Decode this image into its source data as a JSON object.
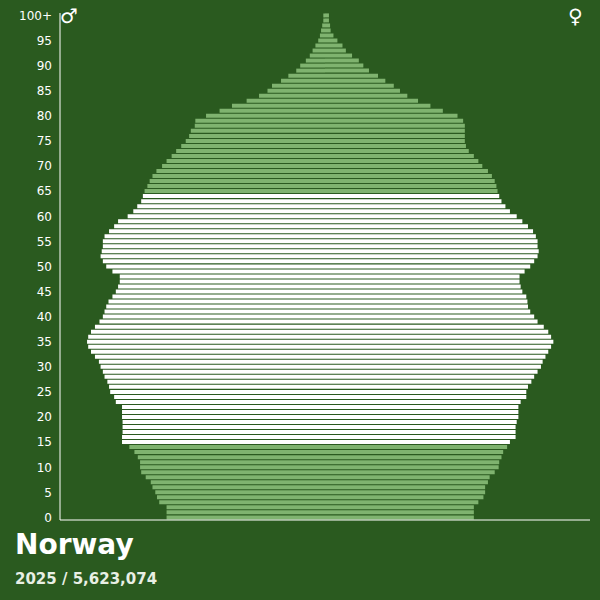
{
  "chart_data": {
    "type": "bar",
    "orientation": "horizontal",
    "title": "Norway",
    "subtitle": "2025 / 5,623,074",
    "tick_labels": "y",
    "xlim": [
      0,
      47000
    ],
    "categories": [
      "0",
      null,
      null,
      null,
      null,
      "5",
      null,
      null,
      null,
      null,
      "10",
      null,
      null,
      null,
      null,
      "15",
      null,
      null,
      null,
      null,
      "20",
      null,
      null,
      null,
      null,
      "25",
      null,
      null,
      null,
      null,
      "30",
      null,
      null,
      null,
      null,
      "35",
      null,
      null,
      null,
      null,
      "40",
      null,
      null,
      null,
      null,
      "45",
      null,
      null,
      null,
      null,
      "50",
      null,
      null,
      null,
      null,
      "55",
      null,
      null,
      null,
      null,
      "60",
      null,
      null,
      null,
      null,
      "65",
      null,
      null,
      null,
      null,
      "70",
      null,
      null,
      null,
      null,
      "75",
      null,
      null,
      null,
      null,
      "80",
      null,
      null,
      null,
      null,
      "85",
      null,
      null,
      null,
      null,
      "90",
      null,
      null,
      null,
      null,
      "95",
      null,
      null,
      null,
      null,
      "100+"
    ],
    "series": [
      {
        "name": "♂",
        "color": "#7fb36f",
        "values": [
          28100,
          28100,
          28100,
          29400,
          29800,
          30100,
          30600,
          30900,
          31800,
          32600,
          32800,
          32800,
          33200,
          33800,
          34700,
          36000,
          36000,
          35900,
          35900,
          35900,
          36000,
          36000,
          36000,
          37100,
          37400,
          38100,
          38300,
          38600,
          39100,
          39400,
          39800,
          40100,
          40800,
          41500,
          42000,
          42200,
          42000,
          41500,
          40800,
          40000,
          39400,
          39100,
          38800,
          38400,
          37700,
          37100,
          36700,
          36400,
          36400,
          37700,
          38800,
          39400,
          39800,
          39600,
          39400,
          39400,
          39100,
          38300,
          37400,
          36700,
          35000,
          34000,
          33300,
          32600,
          32300,
          32000,
          31500,
          31100,
          30600,
          29900,
          28900,
          28100,
          27200,
          26400,
          25500,
          24700,
          24100,
          23800,
          23100,
          23000,
          21100,
          18700,
          16500,
          13900,
          11700,
          10200,
          9400,
          7800,
          6500,
          5100,
          4400,
          3400,
          2700,
          2200,
          1700,
          1200,
          900,
          700,
          500,
          300,
          300
        ],
        "colors": [
          "#7fb36f",
          "#7fb36f",
          "#7fb36f",
          "#7fb36f",
          "#7fb36f",
          "#7fb36f",
          "#7fb36f",
          "#7fb36f",
          "#7fb36f",
          "#7fb36f",
          "#7fb36f",
          "#7fb36f",
          "#7fb36f",
          "#7fb36f",
          "#7fb36f",
          "#ffffff",
          "#ffffff",
          "#ffffff",
          "#ffffff",
          "#ffffff",
          "#ffffff",
          "#ffffff",
          "#ffffff",
          "#ffffff",
          "#ffffff",
          "#ffffff",
          "#ffffff",
          "#ffffff",
          "#ffffff",
          "#ffffff",
          "#ffffff",
          "#ffffff",
          "#ffffff",
          "#ffffff",
          "#ffffff",
          "#ffffff",
          "#ffffff",
          "#ffffff",
          "#ffffff",
          "#ffffff",
          "#ffffff",
          "#ffffff",
          "#ffffff",
          "#ffffff",
          "#ffffff",
          "#ffffff",
          "#ffffff",
          "#ffffff",
          "#ffffff",
          "#ffffff",
          "#ffffff",
          "#ffffff",
          "#ffffff",
          "#ffffff",
          "#ffffff",
          "#ffffff",
          "#ffffff",
          "#ffffff",
          "#ffffff",
          "#ffffff",
          "#ffffff",
          "#ffffff",
          "#ffffff",
          "#ffffff",
          "#ffffff",
          "#7fb36f",
          "#7fb36f",
          "#7fb36f",
          "#7fb36f",
          "#7fb36f",
          "#7fb36f",
          "#7fb36f",
          "#7fb36f",
          "#7fb36f",
          "#7fb36f",
          "#7fb36f",
          "#7fb36f",
          "#7fb36f",
          "#7fb36f",
          "#7fb36f",
          "#7fb36f",
          "#7fb36f",
          "#7fb36f",
          "#7fb36f",
          "#7fb36f",
          "#7fb36f",
          "#7fb36f",
          "#7fb36f",
          "#7fb36f",
          "#7fb36f",
          "#7fb36f",
          "#7fb36f",
          "#7fb36f",
          "#7fb36f",
          "#7fb36f",
          "#7fb36f",
          "#7fb36f",
          "#7fb36f",
          "#7fb36f",
          "#7fb36f",
          "#7fb36f"
        ]
      },
      {
        "name": "♀",
        "color": "#7fb36f",
        "values": [
          26400,
          26400,
          26400,
          27200,
          28100,
          28400,
          28400,
          28900,
          29200,
          30100,
          30800,
          30900,
          31300,
          31600,
          32300,
          32800,
          33800,
          33800,
          33800,
          34000,
          34300,
          34300,
          34300,
          34700,
          35700,
          35700,
          36000,
          36600,
          37100,
          37700,
          38300,
          38600,
          39100,
          39600,
          40100,
          40500,
          40100,
          39600,
          38800,
          37700,
          37100,
          36400,
          36000,
          35900,
          35700,
          35000,
          34700,
          34500,
          34500,
          35400,
          36400,
          37100,
          37700,
          37900,
          37700,
          37700,
          37400,
          36900,
          36000,
          35000,
          34000,
          32800,
          32000,
          31300,
          30900,
          30600,
          30400,
          30100,
          29600,
          28900,
          27900,
          27200,
          26400,
          25500,
          25000,
          24800,
          24800,
          24800,
          24800,
          24500,
          23500,
          20900,
          18700,
          16500,
          14600,
          13300,
          12200,
          10700,
          9400,
          7800,
          6800,
          6000,
          4800,
          3700,
          3100,
          2200,
          1500,
          1000,
          900,
          700,
          700
        ],
        "colors": [
          "#7fb36f",
          "#7fb36f",
          "#7fb36f",
          "#7fb36f",
          "#7fb36f",
          "#7fb36f",
          "#7fb36f",
          "#7fb36f",
          "#7fb36f",
          "#7fb36f",
          "#7fb36f",
          "#7fb36f",
          "#7fb36f",
          "#7fb36f",
          "#7fb36f",
          "#ffffff",
          "#ffffff",
          "#ffffff",
          "#ffffff",
          "#ffffff",
          "#ffffff",
          "#ffffff",
          "#ffffff",
          "#ffffff",
          "#ffffff",
          "#ffffff",
          "#ffffff",
          "#ffffff",
          "#ffffff",
          "#ffffff",
          "#ffffff",
          "#ffffff",
          "#ffffff",
          "#ffffff",
          "#ffffff",
          "#ffffff",
          "#ffffff",
          "#ffffff",
          "#ffffff",
          "#ffffff",
          "#ffffff",
          "#ffffff",
          "#ffffff",
          "#ffffff",
          "#ffffff",
          "#ffffff",
          "#ffffff",
          "#ffffff",
          "#ffffff",
          "#ffffff",
          "#ffffff",
          "#ffffff",
          "#ffffff",
          "#ffffff",
          "#ffffff",
          "#ffffff",
          "#ffffff",
          "#ffffff",
          "#ffffff",
          "#ffffff",
          "#ffffff",
          "#ffffff",
          "#ffffff",
          "#ffffff",
          "#ffffff",
          "#7fb36f",
          "#7fb36f",
          "#7fb36f",
          "#7fb36f",
          "#7fb36f",
          "#7fb36f",
          "#7fb36f",
          "#7fb36f",
          "#7fb36f",
          "#7fb36f",
          "#7fb36f",
          "#7fb36f",
          "#7fb36f",
          "#7fb36f",
          "#7fb36f",
          "#7fb36f",
          "#7fb36f",
          "#7fb36f",
          "#7fb36f",
          "#7fb36f",
          "#7fb36f",
          "#7fb36f",
          "#7fb36f",
          "#7fb36f",
          "#7fb36f",
          "#7fb36f",
          "#7fb36f",
          "#7fb36f",
          "#7fb36f",
          "#7fb36f",
          "#7fb36f",
          "#7fb36f",
          "#7fb36f",
          "#7fb36f",
          "#7fb36f",
          "#7fb36f"
        ]
      }
    ]
  }
}
